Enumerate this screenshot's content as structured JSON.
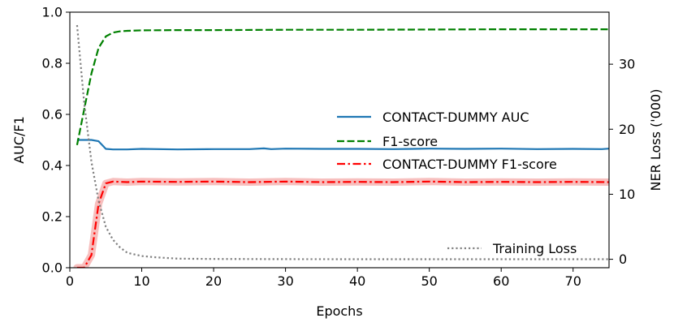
{
  "chart_data": {
    "type": "line",
    "xlabel": "Epochs",
    "ylabel": "AUC/F1",
    "y2label": "NER Loss ('000)",
    "xlim": [
      0,
      75
    ],
    "ylim": [
      0,
      1.0
    ],
    "y2lim": [
      -1.3,
      38
    ],
    "x_ticks": [
      0,
      10,
      20,
      30,
      40,
      50,
      60,
      70
    ],
    "y_ticks": [
      0.0,
      0.2,
      0.4,
      0.6,
      0.8,
      1.0
    ],
    "y2_ticks": [
      0,
      10,
      20,
      30
    ],
    "grid": false,
    "legend_placement": "center-right",
    "series": [
      {
        "name": "CONTACT-DUMMY AUC",
        "axis": "left",
        "color": "#1f77b4",
        "style": "solid",
        "x": [
          1,
          2,
          3,
          4,
          5,
          6,
          8,
          10,
          15,
          20,
          25,
          27,
          28,
          30,
          35,
          40,
          45,
          50,
          55,
          60,
          65,
          70,
          74,
          75
        ],
        "y": [
          0.5,
          0.5,
          0.5,
          0.495,
          0.465,
          0.463,
          0.463,
          0.465,
          0.463,
          0.464,
          0.464,
          0.467,
          0.464,
          0.466,
          0.465,
          0.465,
          0.464,
          0.466,
          0.465,
          0.466,
          0.464,
          0.465,
          0.464,
          0.466
        ]
      },
      {
        "name": "F1-score",
        "axis": "left",
        "color": "#008000",
        "style": "dashed",
        "x": [
          1,
          2,
          3,
          4,
          5,
          6,
          7,
          8,
          10,
          15,
          20,
          30,
          40,
          50,
          60,
          70,
          75
        ],
        "y": [
          0.48,
          0.62,
          0.76,
          0.86,
          0.905,
          0.92,
          0.925,
          0.927,
          0.929,
          0.93,
          0.93,
          0.931,
          0.931,
          0.932,
          0.933,
          0.933,
          0.933
        ]
      },
      {
        "name": "CONTACT-DUMMY F1-score",
        "axis": "left",
        "color": "#ff0000",
        "style": "dashdot",
        "x": [
          1,
          2,
          3,
          4,
          5,
          6,
          8,
          10,
          15,
          20,
          25,
          30,
          35,
          40,
          45,
          50,
          55,
          60,
          65,
          70,
          75
        ],
        "y": [
          0.0,
          0.0,
          0.05,
          0.25,
          0.33,
          0.337,
          0.335,
          0.337,
          0.336,
          0.337,
          0.335,
          0.337,
          0.335,
          0.336,
          0.335,
          0.337,
          0.335,
          0.336,
          0.335,
          0.336,
          0.335
        ],
        "band_color": "#f4a9a8"
      },
      {
        "name": "Training Loss",
        "axis": "right",
        "color": "#808080",
        "style": "dotted",
        "x": [
          1,
          2,
          3,
          4,
          5,
          6,
          7,
          8,
          10,
          12,
          15,
          20,
          30,
          40,
          50,
          60,
          70,
          75
        ],
        "y": [
          36,
          24,
          15,
          9,
          5,
          3,
          1.8,
          1.0,
          0.5,
          0.3,
          0.1,
          0.05,
          0.02,
          0.01,
          0.01,
          0.01,
          0.01,
          0.01
        ]
      }
    ]
  }
}
